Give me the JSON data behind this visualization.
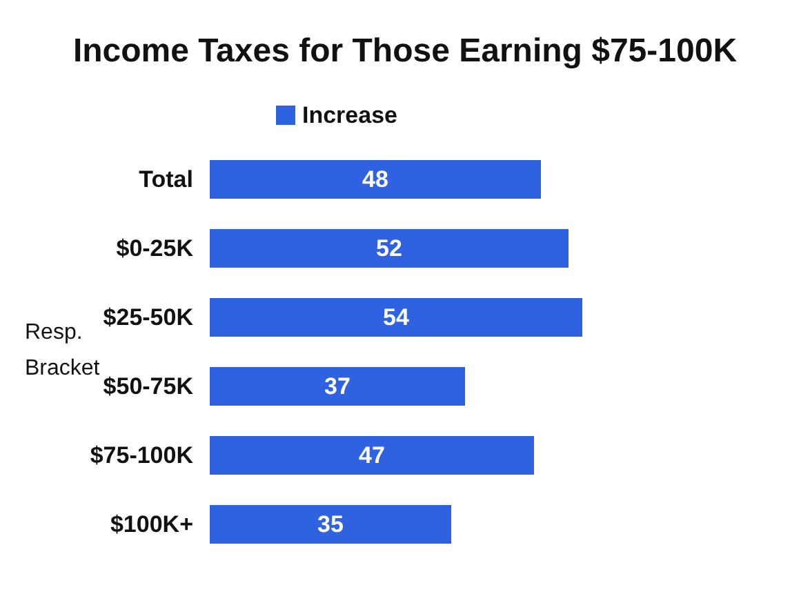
{
  "chart_data": {
    "type": "bar",
    "orientation": "horizontal",
    "title": "Income Taxes for Those Earning $75-100K",
    "ylabel": "Resp. Bracket",
    "categories": [
      "Total",
      "$0-25K",
      "$25-50K",
      "$50-75K",
      "$75-100K",
      "$100K+"
    ],
    "series": [
      {
        "name": "Increase",
        "color": "#2f62e0",
        "values": [
          48,
          52,
          54,
          37,
          47,
          35
        ]
      }
    ],
    "data_labels": true,
    "legend": "top"
  }
}
